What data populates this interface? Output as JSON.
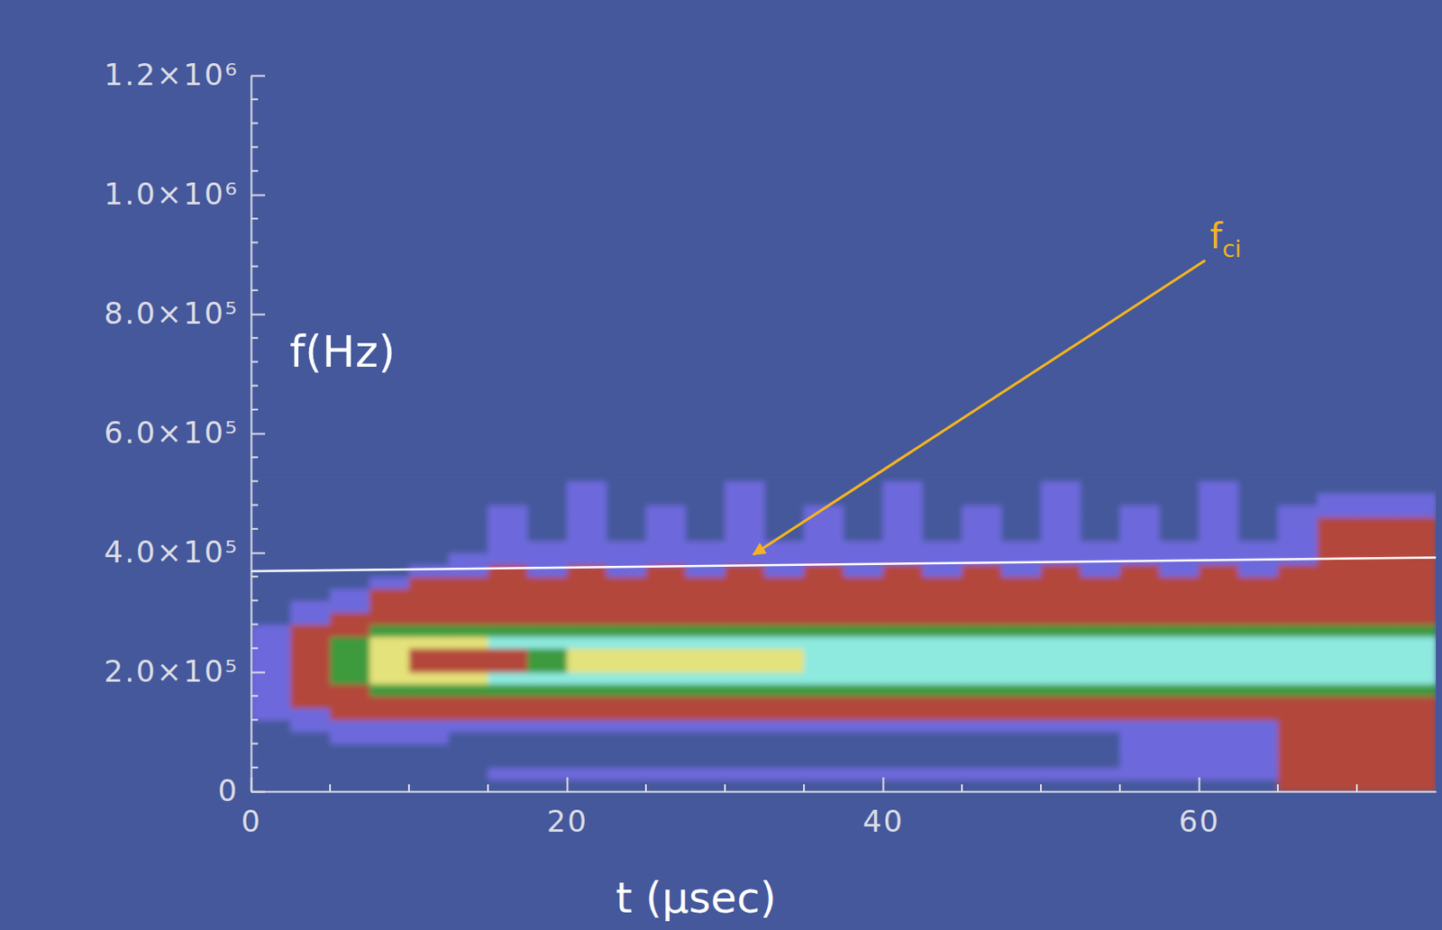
{
  "chart_data": {
    "type": "heatmap",
    "x_label": "t (μsec)",
    "y_label": "f(Hz)",
    "xlim": [
      0,
      75
    ],
    "ylim": [
      0,
      1200000
    ],
    "xticks": [
      0,
      20,
      40,
      60
    ],
    "yticks": [
      0,
      {
        "value": 200000,
        "label": "2.0×10⁵"
      },
      {
        "value": 400000,
        "label": "4.0×10⁵"
      },
      {
        "value": 600000,
        "label": "6.0×10⁵"
      },
      {
        "value": 800000,
        "label": "8.0×10⁵"
      },
      {
        "value": 1000000,
        "label": "1.0×10⁶"
      },
      {
        "value": 1200000,
        "label": "1.2×10⁶"
      }
    ],
    "xminor_ticks": [
      5,
      10,
      15,
      25,
      30,
      35,
      45,
      50,
      55,
      65,
      70
    ],
    "yminor_ticks": [
      40000,
      80000,
      120000,
      160000,
      240000,
      280000,
      320000,
      360000,
      440000,
      480000,
      520000,
      560000,
      640000,
      680000,
      720000,
      760000,
      840000,
      880000,
      920000,
      960000,
      1040000,
      1080000,
      1120000,
      1160000
    ],
    "x_bins": [
      0,
      2.5,
      5,
      7.5,
      10,
      12.5,
      15,
      17.5,
      20,
      22.5,
      25,
      27.5,
      30,
      32.5,
      35,
      37.5,
      40,
      42.5,
      45,
      47.5,
      50,
      52.5,
      55,
      57.5,
      60,
      62.5,
      65,
      67.5,
      70,
      72.5,
      75
    ],
    "y_bins": [
      0,
      20000,
      40000,
      60000,
      80000,
      100000,
      120000,
      140000,
      160000,
      180000,
      200000,
      220000,
      240000,
      260000,
      280000,
      300000,
      320000,
      340000,
      360000,
      380000,
      400000,
      420000,
      440000,
      460000,
      480000,
      500000,
      520000
    ],
    "colors": [
      "#44589b",
      "#6d69dc",
      "#b4473b",
      "#3d9a3c",
      "#e4e27a",
      "#8ee9df"
    ],
    "cells": [
      [
        0,
        0,
        0,
        0,
        0,
        0,
        0,
        0,
        0,
        0,
        0,
        0,
        0,
        0,
        0,
        0,
        0,
        0,
        0,
        0,
        0,
        0,
        0,
        0,
        0,
        0,
        2,
        2,
        2,
        2
      ],
      [
        0,
        0,
        0,
        0,
        0,
        0,
        1,
        1,
        1,
        1,
        1,
        1,
        1,
        1,
        1,
        1,
        1,
        1,
        1,
        1,
        1,
        1,
        1,
        1,
        1,
        1,
        2,
        2,
        2,
        2
      ],
      [
        0,
        0,
        0,
        0,
        0,
        0,
        0,
        0,
        0,
        0,
        0,
        0,
        0,
        0,
        0,
        0,
        0,
        0,
        0,
        0,
        0,
        0,
        1,
        1,
        1,
        1,
        2,
        2,
        2,
        2
      ],
      [
        0,
        0,
        0,
        0,
        0,
        0,
        0,
        0,
        0,
        0,
        0,
        0,
        0,
        0,
        0,
        0,
        0,
        0,
        0,
        0,
        0,
        0,
        1,
        1,
        1,
        1,
        2,
        2,
        2,
        2
      ],
      [
        0,
        0,
        1,
        1,
        1,
        0,
        0,
        0,
        0,
        0,
        0,
        0,
        0,
        0,
        0,
        0,
        0,
        0,
        0,
        0,
        0,
        0,
        1,
        1,
        1,
        1,
        2,
        2,
        2,
        2
      ],
      [
        0,
        1,
        1,
        1,
        1,
        1,
        1,
        1,
        1,
        1,
        1,
        1,
        1,
        1,
        1,
        1,
        1,
        1,
        1,
        1,
        1,
        1,
        1,
        1,
        1,
        1,
        2,
        2,
        2,
        2
      ],
      [
        1,
        1,
        2,
        2,
        2,
        2,
        2,
        2,
        2,
        2,
        2,
        2,
        2,
        2,
        2,
        2,
        2,
        2,
        2,
        2,
        2,
        2,
        2,
        2,
        2,
        2,
        2,
        2,
        2,
        2
      ],
      [
        1,
        2,
        2,
        2,
        2,
        2,
        2,
        2,
        2,
        2,
        2,
        2,
        2,
        2,
        2,
        2,
        2,
        2,
        2,
        2,
        2,
        2,
        2,
        2,
        2,
        2,
        2,
        2,
        2,
        2
      ],
      [
        1,
        2,
        2,
        3,
        3,
        3,
        3,
        3,
        3,
        3,
        3,
        3,
        3,
        3,
        3,
        3,
        3,
        3,
        3,
        3,
        3,
        3,
        3,
        3,
        3,
        3,
        3,
        3,
        3,
        3
      ],
      [
        1,
        2,
        3,
        4,
        4,
        4,
        5,
        5,
        5,
        5,
        5,
        5,
        5,
        5,
        5,
        5,
        5,
        5,
        5,
        5,
        5,
        5,
        5,
        5,
        5,
        5,
        5,
        5,
        5,
        5
      ],
      [
        1,
        2,
        3,
        4,
        2,
        2,
        2,
        3,
        4,
        4,
        4,
        4,
        4,
        4,
        5,
        5,
        5,
        5,
        5,
        5,
        5,
        5,
        5,
        5,
        5,
        5,
        5,
        5,
        5,
        5
      ],
      [
        1,
        2,
        3,
        4,
        2,
        2,
        2,
        3,
        4,
        4,
        4,
        4,
        4,
        4,
        5,
        5,
        5,
        5,
        5,
        5,
        5,
        5,
        5,
        5,
        5,
        5,
        5,
        5,
        5,
        5
      ],
      [
        1,
        2,
        3,
        4,
        4,
        4,
        5,
        5,
        5,
        5,
        5,
        5,
        5,
        5,
        5,
        5,
        5,
        5,
        5,
        5,
        5,
        5,
        5,
        5,
        5,
        5,
        5,
        5,
        5,
        5
      ],
      [
        1,
        2,
        2,
        3,
        3,
        3,
        3,
        3,
        3,
        3,
        3,
        3,
        3,
        3,
        3,
        3,
        3,
        3,
        3,
        3,
        3,
        3,
        3,
        3,
        3,
        3,
        3,
        3,
        3,
        3
      ],
      [
        0,
        1,
        2,
        2,
        2,
        2,
        2,
        2,
        2,
        2,
        2,
        2,
        2,
        2,
        2,
        2,
        2,
        2,
        2,
        2,
        2,
        2,
        2,
        2,
        2,
        2,
        2,
        2,
        2,
        2
      ],
      [
        0,
        1,
        1,
        2,
        2,
        2,
        2,
        2,
        2,
        2,
        2,
        2,
        2,
        2,
        2,
        2,
        2,
        2,
        2,
        2,
        2,
        2,
        2,
        2,
        2,
        2,
        2,
        2,
        2,
        2
      ],
      [
        0,
        0,
        1,
        2,
        2,
        2,
        2,
        2,
        2,
        2,
        2,
        2,
        2,
        2,
        2,
        2,
        2,
        2,
        2,
        2,
        2,
        2,
        2,
        2,
        2,
        2,
        2,
        2,
        2,
        2
      ],
      [
        0,
        0,
        0,
        1,
        2,
        2,
        2,
        2,
        2,
        2,
        2,
        2,
        2,
        2,
        2,
        2,
        2,
        2,
        2,
        2,
        2,
        2,
        2,
        2,
        2,
        2,
        2,
        2,
        2,
        2
      ],
      [
        0,
        0,
        0,
        0,
        1,
        1,
        2,
        1,
        2,
        1,
        2,
        1,
        2,
        1,
        2,
        1,
        2,
        1,
        2,
        1,
        2,
        1,
        2,
        1,
        2,
        1,
        2,
        2,
        2,
        2
      ],
      [
        0,
        0,
        0,
        0,
        0,
        1,
        1,
        1,
        1,
        1,
        1,
        1,
        1,
        1,
        1,
        1,
        1,
        1,
        1,
        1,
        1,
        1,
        1,
        1,
        1,
        1,
        1,
        2,
        2,
        2
      ],
      [
        0,
        0,
        0,
        0,
        0,
        0,
        1,
        1,
        1,
        1,
        1,
        1,
        1,
        1,
        1,
        1,
        1,
        1,
        1,
        1,
        1,
        1,
        1,
        1,
        1,
        1,
        1,
        2,
        2,
        2
      ],
      [
        0,
        0,
        0,
        0,
        0,
        0,
        1,
        0,
        1,
        0,
        1,
        0,
        1,
        0,
        1,
        0,
        1,
        0,
        1,
        0,
        1,
        0,
        1,
        0,
        1,
        0,
        1,
        2,
        2,
        2
      ],
      [
        0,
        0,
        0,
        0,
        0,
        0,
        1,
        0,
        1,
        0,
        1,
        0,
        1,
        0,
        1,
        0,
        1,
        0,
        1,
        0,
        1,
        0,
        1,
        0,
        1,
        0,
        1,
        2,
        2,
        2
      ],
      [
        0,
        0,
        0,
        0,
        0,
        0,
        1,
        0,
        1,
        0,
        1,
        0,
        1,
        0,
        1,
        0,
        1,
        0,
        1,
        0,
        1,
        0,
        1,
        0,
        1,
        0,
        1,
        1,
        1,
        1
      ],
      [
        0,
        0,
        0,
        0,
        0,
        0,
        0,
        0,
        1,
        0,
        0,
        0,
        1,
        0,
        0,
        0,
        1,
        0,
        0,
        0,
        1,
        0,
        0,
        0,
        1,
        0,
        0,
        1,
        1,
        1
      ],
      [
        0,
        0,
        0,
        0,
        0,
        0,
        0,
        0,
        1,
        0,
        0,
        0,
        1,
        0,
        0,
        0,
        1,
        0,
        0,
        0,
        1,
        0,
        0,
        0,
        1,
        0,
        0,
        0,
        0,
        0
      ]
    ],
    "reference_line": {
      "x": [
        0,
        75
      ],
      "y": [
        369000,
        392000
      ],
      "color": "#ffffff"
    },
    "annotations": [
      {
        "text": "f",
        "subscript": "ci",
        "x": 60.7,
        "y": 910000,
        "arrow_x": [
          60.4,
          31.8
        ],
        "arrow_y": [
          890000,
          397000
        ],
        "color": "#f5b41e"
      }
    ]
  }
}
